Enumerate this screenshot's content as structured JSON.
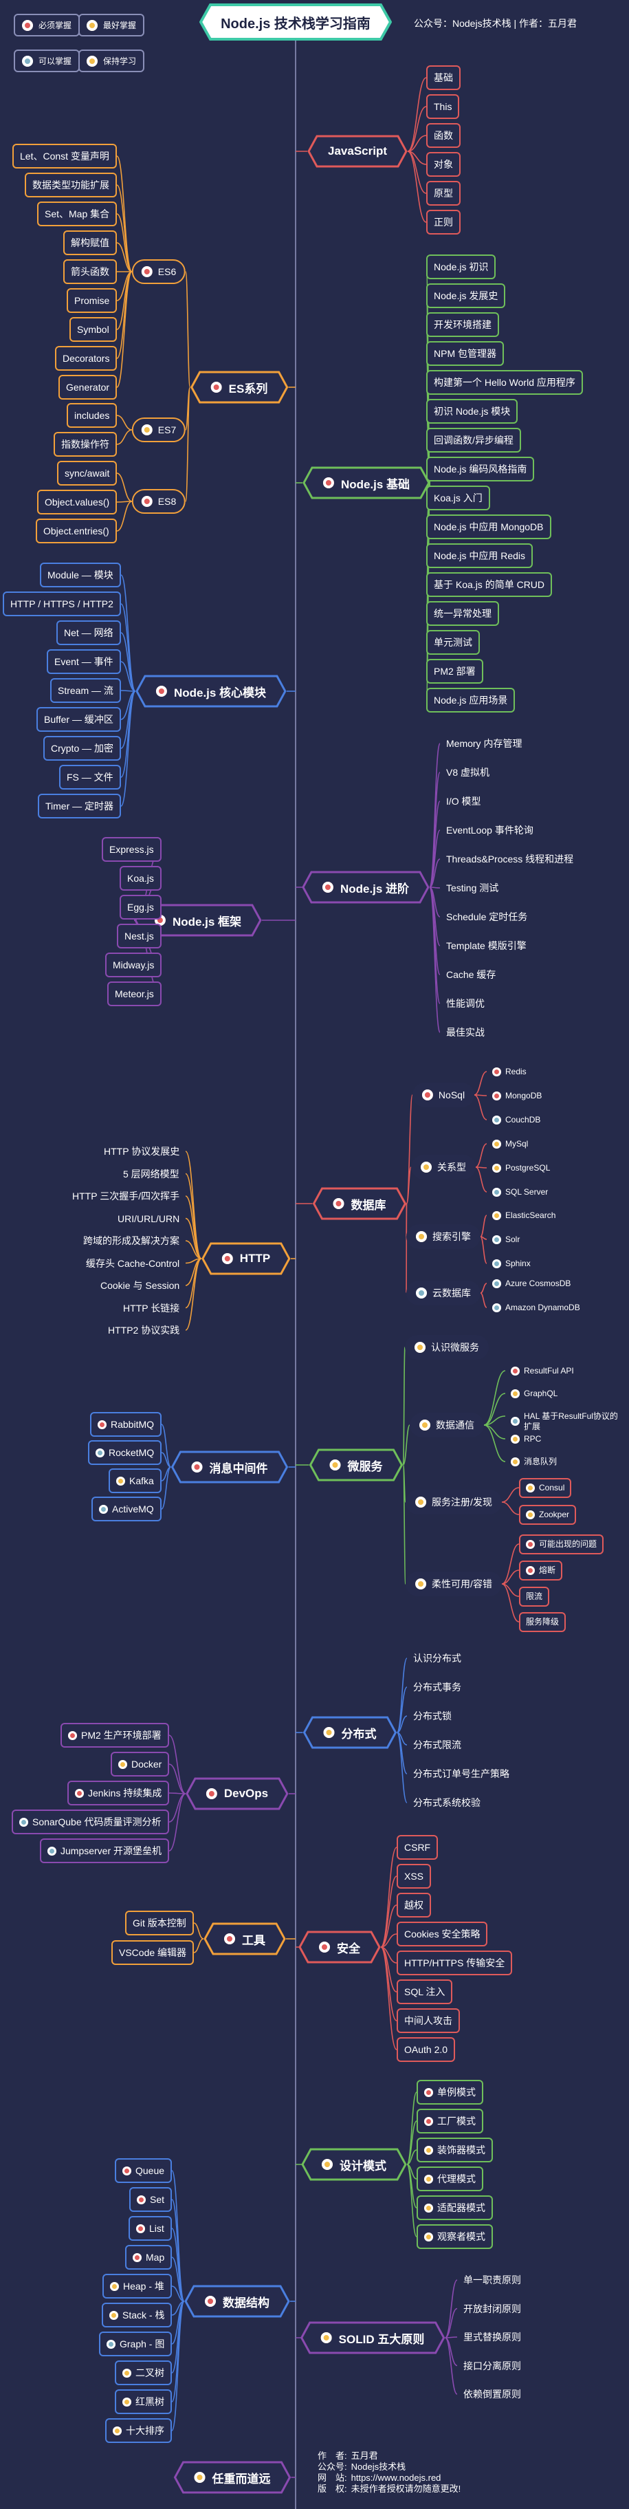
{
  "title": "Node.js 技术栈学习指南",
  "byline": "公众号：Nodejs技术栈 | 作者：五月君",
  "legend": [
    {
      "label": "必须掌握",
      "color": "#e05a5a"
    },
    {
      "label": "最好掌握",
      "color": "#f2bd4a"
    },
    {
      "label": "可以掌握",
      "color": "#7fb2c6"
    },
    {
      "label": "保持学习",
      "color": "#f2bd4a"
    }
  ],
  "colors": {
    "bg": "#252a4a",
    "spine": "#8a8fb8",
    "red": "#e05a5a",
    "orange": "#f2a03a",
    "green": "#6fbf5a",
    "blue": "#4a7fe0",
    "purple": "#8a4ab0",
    "teal": "#7fb2c6"
  },
  "sections": {
    "javascript": {
      "label": "JavaScript",
      "items": [
        "基础",
        "This",
        "函数",
        "对象",
        "原型",
        "正则"
      ]
    },
    "es": {
      "label": "ES系列",
      "es6": {
        "label": "ES6",
        "items": [
          "Let、Const 变量声明",
          "数据类型功能扩展",
          "Set、Map 集合",
          "解构赋值",
          "箭头函数",
          "Promise",
          "Symbol",
          "Decorators",
          "Generator"
        ]
      },
      "es7": {
        "label": "ES7",
        "items": [
          "includes",
          "指数操作符"
        ]
      },
      "es8": {
        "label": "ES8",
        "items": [
          "sync/await",
          "Object.values()",
          "Object.entries()"
        ]
      }
    },
    "basics": {
      "label": "Node.js 基础",
      "items": [
        "Node.js 初识",
        "Node.js 发展史",
        "开发环境搭建",
        "NPM 包管理器",
        "构建第一个 Hello World 应用程序",
        "初识 Node.js 模块",
        "回调函数/异步编程",
        "Node.js 编码风格指南",
        "Koa.js 入门",
        "Node.js 中应用 MongoDB",
        "Node.js 中应用 Redis",
        "基于 Koa.js 的简单 CRUD",
        "统一异常处理",
        "单元测试",
        "PM2 部署",
        "Node.js 应用场景"
      ]
    },
    "core": {
      "label": "Node.js 核心模块",
      "items": [
        "Module — 模块",
        "HTTP / HTTPS / HTTP2",
        "Net — 网络",
        "Event — 事件",
        "Stream — 流",
        "Buffer — 缓冲区",
        "Crypto — 加密",
        "FS — 文件",
        "Timer — 定时器"
      ]
    },
    "advanced": {
      "label": "Node.js 进阶",
      "items": [
        "Memory 内存管理",
        "V8 虚拟机",
        "I/O 模型",
        "EventLoop 事件轮询",
        "Threads&Process 线程和进程",
        "Testing 测试",
        "Schedule 定时任务",
        "Template 模版引擎",
        "Cache 缓存",
        "性能调优",
        "最佳实战"
      ]
    },
    "framework": {
      "label": "Node.js 框架",
      "items": [
        "Express.js",
        "Koa.js",
        "Egg.js",
        "Nest.js",
        "Midway.js",
        "Meteor.js"
      ]
    },
    "database": {
      "label": "数据库",
      "nosql": {
        "label": "NoSql",
        "items": [
          "Redis",
          "MongoDB",
          "CouchDB"
        ]
      },
      "relational": {
        "label": "关系型",
        "items": [
          "MySql",
          "PostgreSQL",
          "SQL Server"
        ]
      },
      "search": {
        "label": "搜索引擎",
        "items": [
          "ElasticSearch",
          "Solr",
          "Sphinx"
        ]
      },
      "cloud": {
        "label": "云数据库",
        "items": [
          "Azure CosmosDB",
          "Amazon DynamoDB"
        ]
      }
    },
    "http": {
      "label": "HTTP",
      "items": [
        "HTTP 协议发展史",
        "5 层网络模型",
        "HTTP 三次握手/四次挥手",
        "URI/URL/URN",
        "跨域的形成及解决方案",
        "缓存头 Cache-Control",
        "Cookie 与 Session",
        "HTTP 长链接",
        "HTTP2 协议实践"
      ]
    },
    "micro": {
      "label": "微服务",
      "know": {
        "label": "认识微服务"
      },
      "comm": {
        "label": "数据通信",
        "items": [
          "ResultFul API",
          "GraphQL",
          "HAL 基于ResultFul协议的扩展",
          "RPC",
          "消息队列"
        ]
      },
      "register": {
        "label": "服务注册/发现",
        "items": [
          "Consul",
          "Zookper"
        ]
      },
      "avail": {
        "label": "柔性可用/容错",
        "items": [
          "可能出现的问题",
          "熔断",
          "限流",
          "服务降级"
        ]
      }
    },
    "mq": {
      "label": "消息中间件",
      "items": [
        "RabbitMQ",
        "RocketMQ",
        "Kafka",
        "ActiveMQ"
      ]
    },
    "distributed": {
      "label": "分布式",
      "items": [
        "认识分布式",
        "分布式事务",
        "分布式锁",
        "分布式限流",
        "分布式订单号生产策略",
        "分布式系统校验"
      ]
    },
    "devops": {
      "label": "DevOps",
      "items": [
        "PM2 生产环境部署",
        "Docker",
        "Jenkins 持续集成",
        "SonarQube 代码质量评测分析",
        "Jumpserver 开源堡垒机"
      ]
    },
    "tools": {
      "label": "工具",
      "items": [
        "Git 版本控制",
        "VSCode 编辑器"
      ]
    },
    "security": {
      "label": "安全",
      "items": [
        "CSRF",
        "XSS",
        "越权",
        "Cookies 安全策略",
        "HTTP/HTTPS 传输安全",
        "SQL 注入",
        "中间人攻击",
        "OAuth 2.0"
      ]
    },
    "patterns": {
      "label": "设计模式",
      "items": [
        "单例模式",
        "工厂模式",
        "装饰器模式",
        "代理模式",
        "适配器模式",
        "观察者模式"
      ]
    },
    "ds": {
      "label": "数据结构",
      "items": [
        "Queue",
        "Set",
        "List",
        "Map",
        "Heap - 堆",
        "Stack - 栈",
        "Graph - 图",
        "二叉树",
        "红黑树",
        "十大排序"
      ]
    },
    "solid": {
      "label": "SOLID 五大原则",
      "items": [
        "单一职责原则",
        "开放封闭原则",
        "里式替换原则",
        "接口分离原则",
        "依赖倒置原则"
      ]
    },
    "bottom": {
      "label": "任重而道远"
    }
  },
  "footer": {
    "author_key": "作　者:",
    "author": "五月君",
    "wechat_key": "公众号:",
    "wechat": "Nodejs技术栈",
    "site_key": "网　站:",
    "site": "https://www.nodejs.red",
    "copyright_key": "版　权:",
    "copyright": "未授作者授权请勿随意更改!"
  }
}
